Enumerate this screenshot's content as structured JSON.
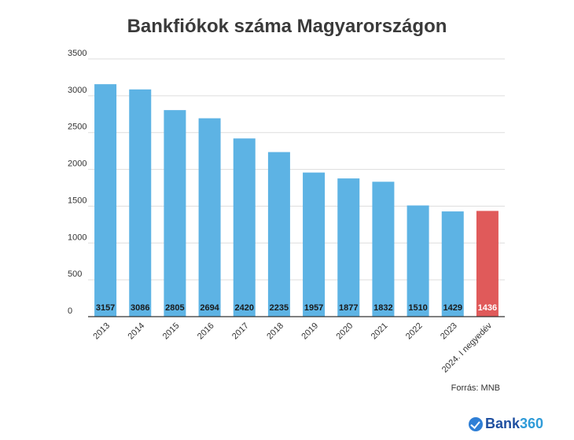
{
  "chart_data": {
    "type": "bar",
    "title": "Bankfiókok száma Magyarországon",
    "xlabel": "",
    "ylabel": "",
    "ylim": [
      0,
      3500
    ],
    "yticks": [
      0,
      500,
      1000,
      1500,
      2000,
      2500,
      3000,
      3500
    ],
    "grid": true,
    "categories": [
      "2013",
      "2014",
      "2015",
      "2016",
      "2017",
      "2018",
      "2019",
      "2020",
      "2021",
      "2022",
      "2023",
      "2024. I negyedév"
    ],
    "values": [
      3157,
      3086,
      2805,
      2694,
      2420,
      2235,
      1957,
      1877,
      1832,
      1510,
      1429,
      1436
    ],
    "colors": [
      "#5db3e4",
      "#5db3e4",
      "#5db3e4",
      "#5db3e4",
      "#5db3e4",
      "#5db3e4",
      "#5db3e4",
      "#5db3e4",
      "#5db3e4",
      "#5db3e4",
      "#5db3e4",
      "#e05a5a"
    ],
    "source": "Forrás: MNB"
  },
  "brand": {
    "name": "Bank",
    "number": "360"
  }
}
